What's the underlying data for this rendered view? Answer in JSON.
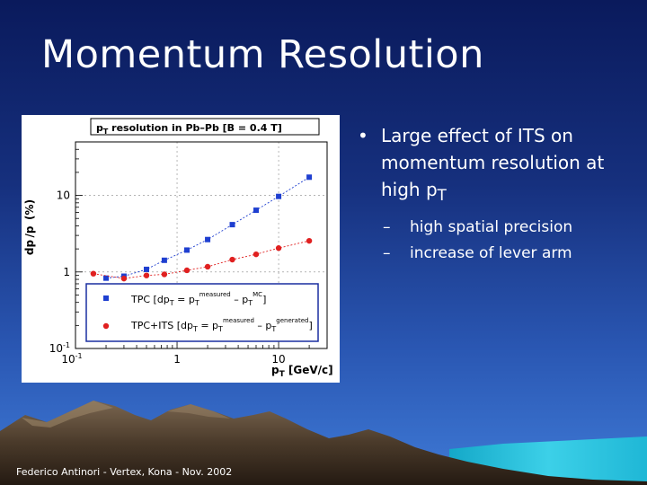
{
  "slide": {
    "title": "Momentum Resolution",
    "footer": "Federico Antinori - Vertex, Kona - Nov. 2002"
  },
  "bullets": {
    "main_prefix": "Large effect of ITS on momentum resolution at high p",
    "main_sub": "T",
    "subs": [
      "high spatial precision",
      "increase of lever arm"
    ]
  },
  "colors": {
    "bg_top": "#0a1a5c",
    "bg_bottom": "#3f7ad6",
    "tpc": "#1f3fd0",
    "tpc_its": "#e02020",
    "legend_frame": "#1a2fa0"
  },
  "chart_data": {
    "type": "scatter",
    "title_prefix": "p",
    "title_sub": "T",
    "title_rest": " resolution in Pb–Pb [B = 0.4 T]",
    "xlabel_main": "p",
    "xlabel_sub": "T",
    "xlabel_unit": " [GeV/c]",
    "ylabel": "dp /p  (%)",
    "x_scale": "log",
    "y_scale": "log",
    "xlim": [
      0.1,
      30
    ],
    "ylim": [
      0.1,
      50
    ],
    "x_ticks": [
      {
        "v": 0.1,
        "base": "10",
        "exp": "-1"
      },
      {
        "v": 1,
        "base": "1",
        "exp": ""
      },
      {
        "v": 10,
        "base": "10",
        "exp": ""
      }
    ],
    "y_ticks": [
      {
        "v": 0.1,
        "base": "10",
        "exp": "-1"
      },
      {
        "v": 1,
        "base": "1",
        "exp": ""
      },
      {
        "v": 10,
        "base": "10",
        "exp": ""
      }
    ],
    "grid": true,
    "legend_position": "lower-center",
    "series": [
      {
        "name": "TPC [dp",
        "legend_parts": [
          "TPC [dp",
          "T",
          " = p",
          "T",
          "measured",
          " – p",
          "T",
          "MC",
          "]"
        ],
        "marker": "square",
        "color": "#1f3fd0",
        "x": [
          0.2,
          0.3,
          0.5,
          0.75,
          1.25,
          2.0,
          3.5,
          6.0,
          10.0,
          20.0
        ],
        "y": [
          0.83,
          0.88,
          1.08,
          1.42,
          1.93,
          2.65,
          4.15,
          6.4,
          9.7,
          17.3
        ]
      },
      {
        "name": "TPC+ITS [dp",
        "legend_parts": [
          "TPC+ITS [dp",
          "T",
          " = p",
          "T",
          "measured",
          " – p",
          "T",
          "generated",
          "]"
        ],
        "marker": "circle",
        "color": "#e02020",
        "x": [
          0.15,
          0.3,
          0.5,
          0.75,
          1.25,
          2.0,
          3.5,
          6.0,
          10.0,
          20.0
        ],
        "y": [
          0.95,
          0.82,
          0.9,
          0.93,
          1.05,
          1.17,
          1.45,
          1.7,
          2.05,
          2.55
        ]
      }
    ]
  }
}
